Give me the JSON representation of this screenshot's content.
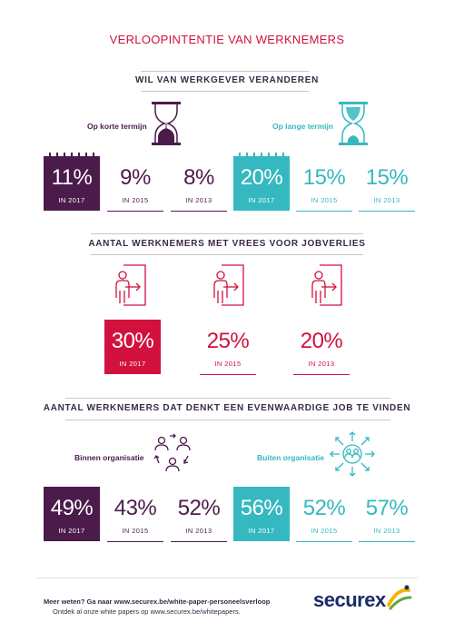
{
  "title": "VERLOOPINTENTIE VAN WERKNEMERS",
  "sections": {
    "s1": {
      "title": "WIL VAN WERKGEVER VERANDEREN",
      "left_label": "Op korte termijn",
      "right_label": "Op lange termijn",
      "left_stats": [
        {
          "value": "11%",
          "year": "IN 2017"
        },
        {
          "value": "9%",
          "year": "IN 2015"
        },
        {
          "value": "8%",
          "year": "IN 2013"
        }
      ],
      "right_stats": [
        {
          "value": "20%",
          "year": "IN 2017"
        },
        {
          "value": "15%",
          "year": "IN 2015"
        },
        {
          "value": "15%",
          "year": "IN 2013"
        }
      ]
    },
    "s2": {
      "title": "AANTAL WERKNEMERS MET VREES VOOR JOBVERLIES",
      "stats": [
        {
          "value": "30%",
          "year": "IN 2017"
        },
        {
          "value": "25%",
          "year": "IN 2015"
        },
        {
          "value": "20%",
          "year": "IN 2013"
        }
      ]
    },
    "s3": {
      "title": "AANTAL WERKNEMERS DAT DENKT EEN EVENWAARDIGE JOB TE VINDEN",
      "left_label": "Binnen organisatie",
      "right_label": "Buiten organisatie",
      "left_stats": [
        {
          "value": "49%",
          "year": "IN 2017"
        },
        {
          "value": "43%",
          "year": "IN 2015"
        },
        {
          "value": "52%",
          "year": "IN 2013"
        }
      ],
      "right_stats": [
        {
          "value": "56%",
          "year": "IN 2017"
        },
        {
          "value": "52%",
          "year": "IN 2015"
        },
        {
          "value": "57%",
          "year": "IN 2013"
        }
      ]
    }
  },
  "footer": {
    "line1": "Meer weten? Ga naar www.securex.be/white-paper-personeelsverloop",
    "line2": "Ontdek al onze white papers op www.securex.be/whitepapers."
  },
  "logo": {
    "text": "securex"
  },
  "colors": {
    "purple": "#4b1b4b",
    "teal": "#35b8c0",
    "red": "#d2113e",
    "navy": "#1a2b6a"
  }
}
